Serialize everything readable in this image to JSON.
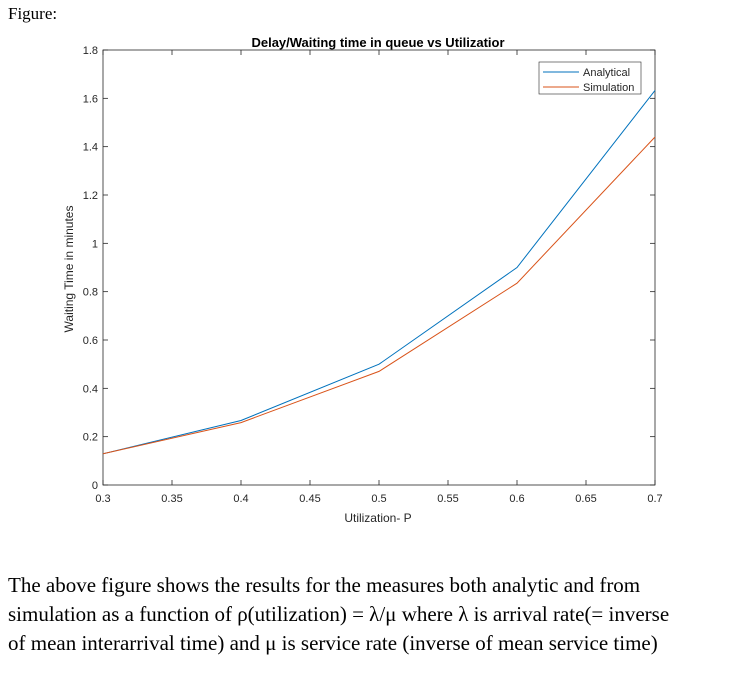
{
  "figure_label": "Figure:",
  "chart_data": {
    "type": "line",
    "title": "Delay/Waiting time in queue vs Utilizatior",
    "xlabel": "Utilization- P",
    "ylabel": "Waiting Time in minutes",
    "xlim": [
      0.3,
      0.7
    ],
    "ylim": [
      0,
      1.8
    ],
    "xticks": [
      0.3,
      0.35,
      0.4,
      0.45,
      0.5,
      0.55,
      0.6,
      0.65,
      0.7
    ],
    "xtick_labels": [
      "0.3",
      "0.35",
      "0.4",
      "0.45",
      "0.5",
      "0.55",
      "0.6",
      "0.65",
      "0.7"
    ],
    "yticks": [
      0,
      0.2,
      0.4,
      0.6,
      0.8,
      1,
      1.2,
      1.4,
      1.6,
      1.8
    ],
    "ytick_labels": [
      "0",
      "0.2",
      "0.4",
      "0.6",
      "0.8",
      "1",
      "1.2",
      "1.4",
      "1.6",
      "1.8"
    ],
    "grid": false,
    "legend_position": "top-right",
    "x": [
      0.3,
      0.4,
      0.5,
      0.6,
      0.7
    ],
    "series": [
      {
        "name": "Analytical",
        "color": "#0072BD",
        "values": [
          0.129,
          0.267,
          0.5,
          0.9,
          1.633
        ]
      },
      {
        "name": "Simulation",
        "color": "#D95319",
        "values": [
          0.129,
          0.258,
          0.47,
          0.835,
          1.44
        ]
      }
    ]
  },
  "caption": {
    "line1": "The above figure shows the results for the measures both analytic and from",
    "line2": "simulation as a function of ρ(utilization)  = λ/μ where  λ is arrival rate(= inverse",
    "line3": "of mean interarrival time) and μ is service rate (inverse of mean service time)"
  }
}
